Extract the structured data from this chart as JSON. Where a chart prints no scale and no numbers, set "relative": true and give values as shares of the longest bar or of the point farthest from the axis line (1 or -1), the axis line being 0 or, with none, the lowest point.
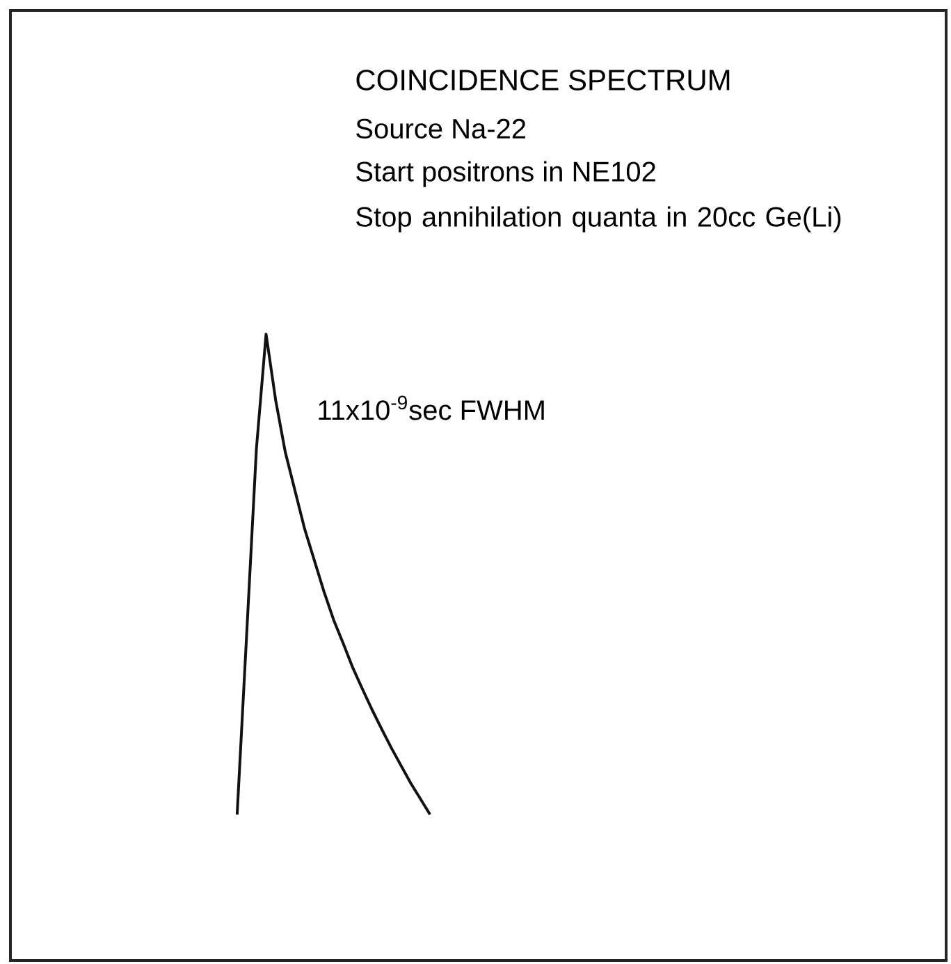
{
  "chart_data": {
    "type": "line",
    "relative": true,
    "title": "COINCIDENCE SPECTRUM",
    "annotations": [
      "Source Na-22",
      "Start positrons in NE102",
      "Stop annihilation quanta in 20cc Ge(Li)",
      "11x10$^{-9}$sec FWHM"
    ],
    "color": "#111111",
    "categories": [
      null,
      null,
      null,
      null,
      null,
      null,
      null,
      null,
      null,
      null,
      null,
      null,
      null,
      null,
      null,
      null,
      null,
      null,
      null,
      null,
      null,
      null,
      null,
      null,
      null,
      null,
      null,
      null,
      null,
      null,
      null,
      null,
      null,
      null,
      null,
      null,
      null,
      null,
      null,
      null,
      null,
      null,
      null,
      null,
      null,
      null,
      null,
      null,
      null,
      null,
      null,
      null,
      null,
      null,
      null,
      null,
      null,
      null,
      null,
      null,
      null,
      null,
      null,
      null,
      null,
      null,
      null,
      null,
      null,
      null,
      null,
      null,
      null,
      null,
      null,
      null,
      null,
      null,
      null,
      null,
      null,
      null,
      null,
      null,
      null,
      null,
      null,
      null,
      null,
      null,
      null,
      null,
      null,
      null,
      null,
      null,
      null
    ],
    "values": [
      null,
      null,
      null,
      null,
      null,
      null,
      null,
      null,
      null,
      null,
      null,
      null,
      null,
      null,
      null,
      null,
      null,
      null,
      null,
      null,
      null,
      null,
      null,
      0.233,
      0.524,
      0.817,
      1,
      0.894,
      0.811,
      0.75,
      0.689,
      0.639,
      0.589,
      0.544,
      0.506,
      0.467,
      0.433,
      0.4,
      0.369,
      0.339,
      0.311,
      0.283,
      0.258,
      0.233,
      null,
      null,
      null,
      null,
      null,
      null,
      null,
      null,
      null,
      null,
      null,
      null,
      null,
      null,
      null,
      null,
      null,
      null,
      null,
      null,
      null,
      null,
      null,
      null,
      null,
      null,
      null,
      null,
      null,
      null,
      null,
      null,
      null,
      null,
      null,
      null,
      null,
      null,
      null,
      null,
      null,
      null,
      null,
      null,
      null,
      null,
      null,
      null,
      null,
      null,
      null,
      null,
      null
    ]
  }
}
